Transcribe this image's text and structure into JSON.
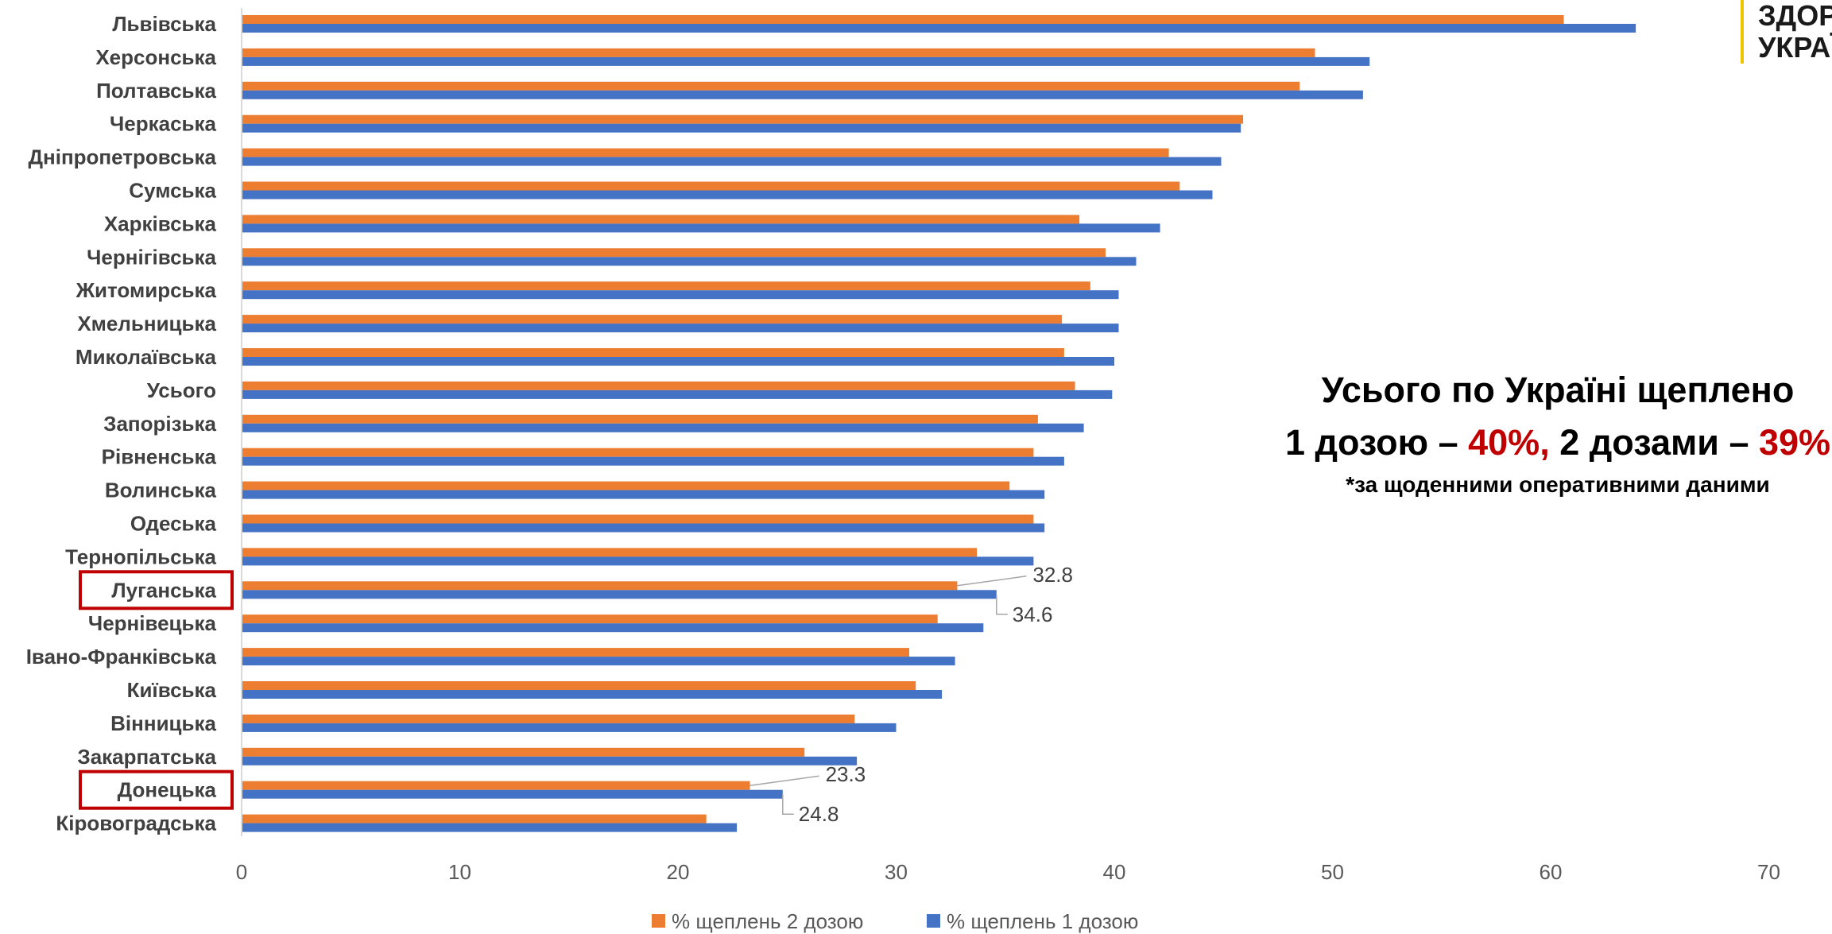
{
  "logo": {
    "line1": "ЗДОРО",
    "line2": "УКРАЇН"
  },
  "summary": {
    "line1": "Усього по Україні щеплено",
    "line2_part1": "1 дозою – ",
    "line2_value1": "40%,",
    "line2_part2": " 2 дозами – ",
    "line2_value2": "39%",
    "line3": "*за щоденними оперативними даними"
  },
  "colors": {
    "dose2": "#ed7d31",
    "dose1": "#4472c4",
    "highlight": "#c00000",
    "axis": "#d9d9d9"
  },
  "chart_data": {
    "type": "bar",
    "orientation": "horizontal",
    "title": "",
    "xlabel": "",
    "ylabel": "",
    "xlim": [
      0,
      70
    ],
    "xticks": [
      0,
      10,
      20,
      30,
      40,
      50,
      60,
      70
    ],
    "grid": false,
    "legend_position": "bottom",
    "categories": [
      "Львівська",
      "Херсонська",
      "Полтавська",
      "Черкаська",
      "Дніпропетровська",
      "Сумська",
      "Харківська",
      "Чернігівська",
      "Житомирська",
      "Хмельницька",
      "Миколаївська",
      "Усього",
      "Запорізька",
      "Рівненська",
      "Волинська",
      "Одеська",
      "Тернопільська",
      "Луганська",
      "Чернівецька",
      "Івано-Франківська",
      "Київська",
      "Вінницька",
      "Закарпатська",
      "Донецька",
      "Кіровоградська"
    ],
    "highlighted_categories": [
      "Луганська",
      "Донецька"
    ],
    "series": [
      {
        "name": "% щеплень 2 дозою",
        "color": "#ed7d31",
        "values": [
          60.6,
          49.2,
          48.5,
          45.9,
          42.5,
          43.0,
          38.4,
          39.6,
          38.9,
          37.6,
          37.7,
          38.2,
          36.5,
          36.3,
          35.2,
          36.3,
          33.7,
          32.8,
          31.9,
          30.6,
          30.9,
          28.1,
          25.8,
          23.3,
          21.3
        ]
      },
      {
        "name": "% щеплень 1 дозою",
        "color": "#4472c4",
        "values": [
          63.9,
          51.7,
          51.4,
          45.8,
          44.9,
          44.5,
          42.1,
          41.0,
          40.2,
          40.2,
          40.0,
          39.9,
          38.6,
          37.7,
          36.8,
          36.8,
          36.3,
          34.6,
          34.0,
          32.7,
          32.1,
          30.0,
          28.2,
          24.8,
          22.7
        ]
      }
    ],
    "data_labels": [
      {
        "category": "Луганська",
        "series": 0,
        "text": "32.8"
      },
      {
        "category": "Луганська",
        "series": 1,
        "text": "34.6"
      },
      {
        "category": "Донецька",
        "series": 0,
        "text": "23.3"
      },
      {
        "category": "Донецька",
        "series": 1,
        "text": "24.8"
      }
    ]
  }
}
